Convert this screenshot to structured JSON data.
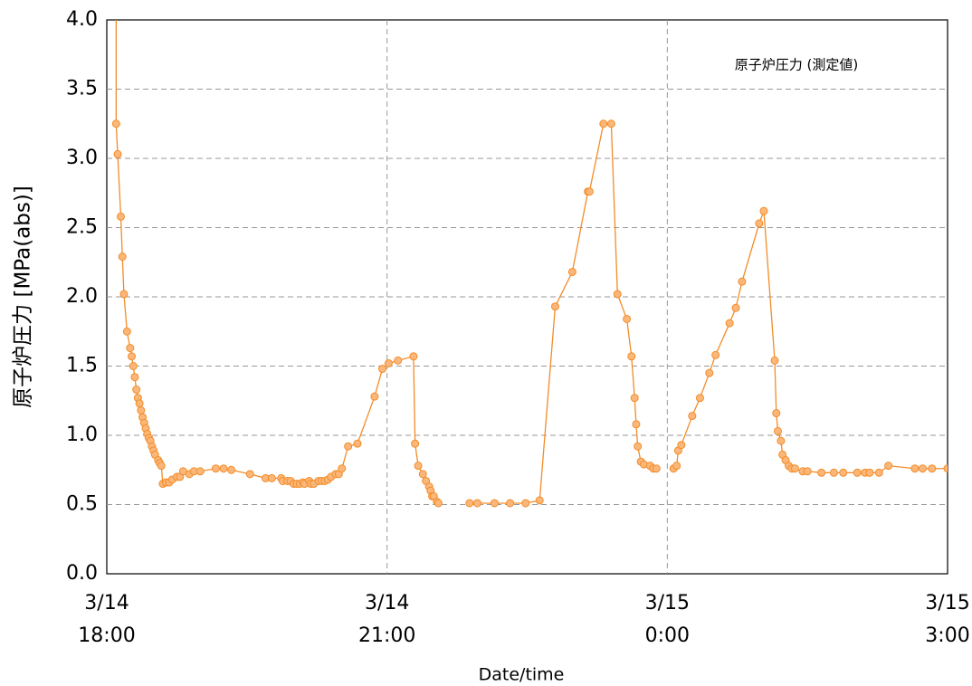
{
  "chart_data": {
    "type": "line",
    "legend_text": "原子炉圧力 (測定値)",
    "xlabel": "Date/time",
    "ylabel": "原子炉圧力 [MPa(abs)]",
    "xlim": [
      0,
      540
    ],
    "xticks": [
      {
        "value": 0,
        "label": "3/14\n18:00"
      },
      {
        "value": 180,
        "label": "3/14\n21:00"
      },
      {
        "value": 360,
        "label": "3/15\n0:00"
      },
      {
        "value": 540,
        "label": "3/15\n3:00"
      }
    ],
    "ylim": [
      0,
      4
    ],
    "yticks": [
      {
        "value": 0,
        "label": "0.0"
      },
      0.5,
      {
        "value": 1,
        "label": "1.0"
      },
      1.5,
      {
        "value": 2,
        "label": "2.0"
      },
      2.5,
      {
        "value": 3,
        "label": "3.0"
      },
      3.5,
      {
        "value": 4,
        "label": "4.0"
      }
    ],
    "grid": true,
    "series": [
      {
        "name": "原子炉圧力 (測定値)",
        "color": "#f28c28",
        "marker_fill": "#fbb77a",
        "x": [
          6,
          6,
          7,
          9,
          10,
          11,
          13,
          15,
          16,
          17,
          18,
          19,
          20,
          21,
          22,
          23,
          24,
          25,
          26,
          27,
          28,
          29,
          30,
          31,
          33,
          34,
          35,
          36,
          38,
          40,
          42,
          45,
          47,
          49,
          53,
          56,
          60,
          70,
          75,
          80,
          92,
          102,
          106,
          112,
          113,
          116,
          118,
          120,
          122,
          124,
          126,
          127,
          130,
          131,
          133,
          136,
          138,
          140,
          142,
          144,
          147,
          149,
          151,
          155,
          161,
          172,
          177,
          181,
          187,
          197,
          198,
          200,
          203,
          205,
          207,
          208,
          209,
          210,
          212,
          213,
          null,
          233,
          238,
          249,
          259,
          269,
          278,
          288,
          299,
          309,
          310,
          319,
          324,
          328,
          334,
          337,
          339,
          340,
          341,
          343,
          345,
          349,
          351,
          353,
          null,
          364,
          366,
          367,
          369,
          376,
          381,
          387,
          391,
          400,
          404,
          408,
          419,
          422,
          429,
          430,
          431,
          433,
          434,
          436,
          438,
          440,
          442,
          447,
          450,
          459,
          467,
          473,
          482,
          487,
          490,
          496,
          502,
          519,
          524,
          530,
          540
        ],
        "values": [
          4.3,
          3.25,
          3.03,
          2.58,
          2.29,
          2.02,
          1.75,
          1.63,
          1.57,
          1.5,
          1.42,
          1.33,
          1.27,
          1.23,
          1.18,
          1.13,
          1.09,
          1.05,
          1.01,
          0.98,
          0.96,
          0.92,
          0.89,
          0.86,
          0.82,
          0.8,
          0.78,
          0.65,
          0.66,
          0.66,
          0.68,
          0.7,
          0.7,
          0.74,
          0.72,
          0.74,
          0.74,
          0.76,
          0.76,
          0.75,
          0.72,
          0.69,
          0.69,
          0.69,
          0.67,
          0.67,
          0.67,
          0.65,
          0.65,
          0.65,
          0.66,
          0.65,
          0.67,
          0.65,
          0.65,
          0.67,
          0.67,
          0.67,
          0.68,
          0.7,
          0.72,
          0.72,
          0.76,
          0.92,
          0.94,
          1.28,
          1.48,
          1.52,
          1.54,
          1.57,
          0.94,
          0.78,
          0.72,
          0.67,
          0.63,
          0.6,
          0.56,
          0.56,
          0.52,
          0.51,
          null,
          0.51,
          0.51,
          0.51,
          0.51,
          0.51,
          0.53,
          1.93,
          2.18,
          2.76,
          2.76,
          3.25,
          3.25,
          2.02,
          1.84,
          1.57,
          1.27,
          1.08,
          0.92,
          0.81,
          0.79,
          0.78,
          0.76,
          0.76,
          null,
          0.76,
          0.78,
          0.89,
          0.93,
          1.14,
          1.27,
          1.45,
          1.58,
          1.81,
          1.92,
          2.11,
          2.53,
          2.62,
          1.54,
          1.16,
          1.03,
          0.96,
          0.86,
          0.82,
          0.78,
          0.76,
          0.76,
          0.74,
          0.74,
          0.73,
          0.73,
          0.73,
          0.73,
          0.73,
          0.73,
          0.73,
          0.78,
          0.76,
          0.76,
          0.76,
          0.76
        ]
      }
    ]
  }
}
